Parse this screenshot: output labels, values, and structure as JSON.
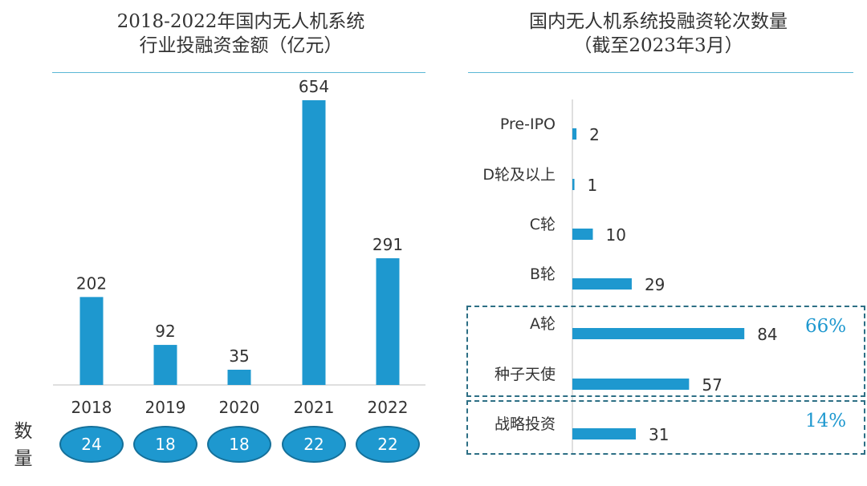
{
  "left_title": {
    "line1": "2018-2022年国内无人机系统",
    "line2": "行业投融资金额（亿元）"
  },
  "right_title": {
    "line1": "国内无人机系统投融资轮次数量",
    "line2": "（截至2023年3月）"
  },
  "count_label": {
    "char1": "数",
    "char2": "量"
  },
  "groups": [
    {
      "pct": "66%"
    },
    {
      "pct": "14%"
    }
  ],
  "colors": {
    "bar": "#1e98cf",
    "axis": "#bfbfbf",
    "rule": "#5bb8d6",
    "dash": "#2d6f85"
  },
  "chart_data": [
    {
      "type": "bar",
      "title": "2018-2022年国内无人机系统行业投融资金额（亿元）",
      "categories": [
        "2018",
        "2019",
        "2020",
        "2021",
        "2022"
      ],
      "values": [
        202,
        92,
        35,
        654,
        291
      ],
      "counts": [
        "24",
        "18",
        "18",
        "22",
        "22"
      ],
      "ylim": [
        0,
        700
      ],
      "grid": false
    },
    {
      "type": "bar",
      "orientation": "horizontal",
      "title": "国内无人机系统投融资轮次数量（截至2023年3月）",
      "categories": [
        "Pre-IPO",
        "D轮及以上",
        "C轮",
        "B轮",
        "A轮",
        "种子天使",
        "战略投资"
      ],
      "values": [
        2,
        1,
        10,
        29,
        84,
        57,
        31
      ],
      "xlim": [
        0,
        100
      ],
      "grid": false
    }
  ]
}
